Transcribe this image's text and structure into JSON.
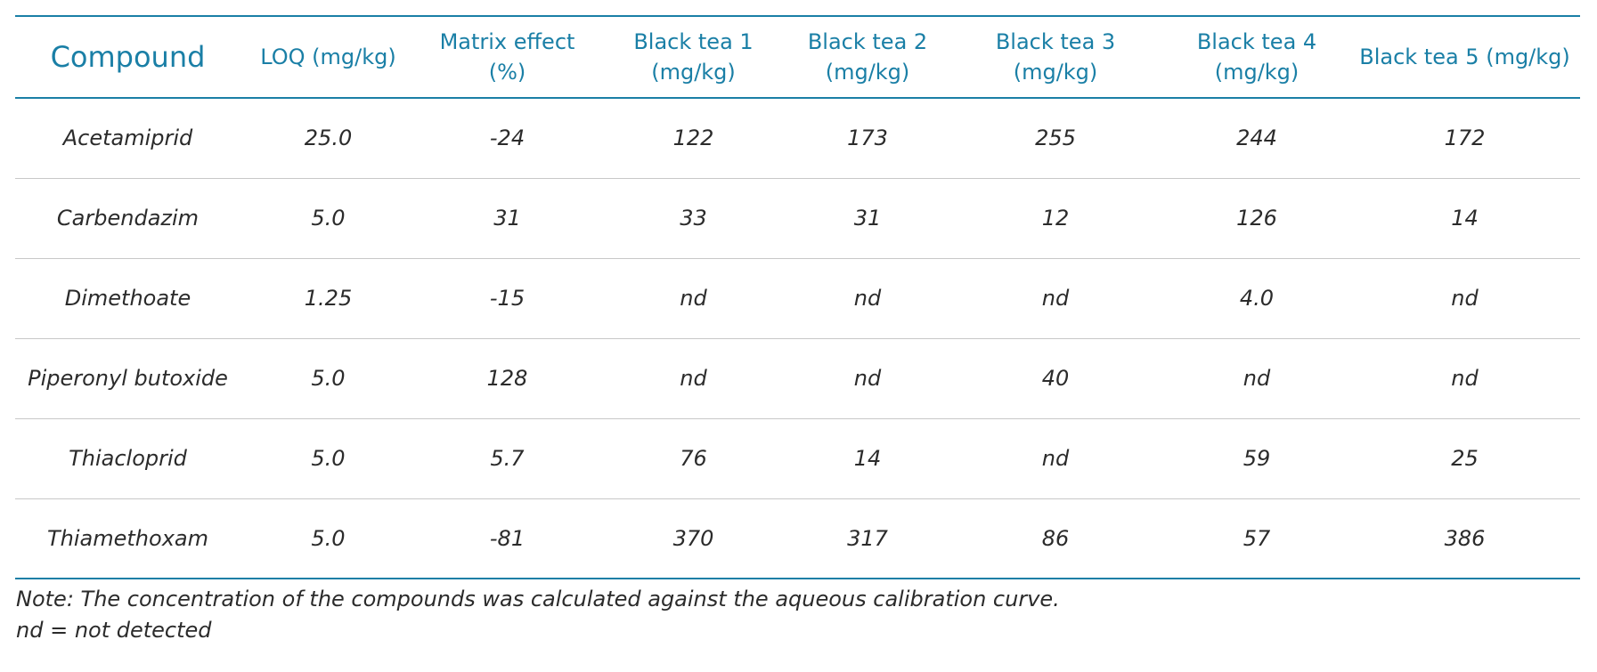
{
  "table": {
    "columns": [
      "Compound",
      "LOQ (mg/kg)",
      "Matrix effect (%)",
      "Black tea 1 (mg/kg)",
      "Black tea 2 (mg/kg)",
      "Black tea 3 (mg/kg)",
      "Black tea 4 (mg/kg)",
      "Black tea 5 (mg/kg)"
    ],
    "rows": [
      [
        "Acetamiprid",
        "25.0",
        "-24",
        "122",
        "173",
        "255",
        "244",
        "172"
      ],
      [
        "Carbendazim",
        "5.0",
        "31",
        "33",
        "31",
        "12",
        "126",
        "14"
      ],
      [
        "Dimethoate",
        "1.25",
        "-15",
        "nd",
        "nd",
        "nd",
        "4.0",
        "nd"
      ],
      [
        "Piperonyl butoxide",
        "5.0",
        "128",
        "nd",
        "nd",
        "40",
        "nd",
        "nd"
      ],
      [
        "Thiacloprid",
        "5.0",
        "5.7",
        "76",
        "14",
        "nd",
        "59",
        "25"
      ],
      [
        "Thiamethoxam",
        "5.0",
        "-81",
        "370",
        "317",
        "86",
        "57",
        "386"
      ]
    ]
  },
  "notes": {
    "line1": "Note: The concentration of the compounds was calculated against the aqueous calibration curve.",
    "line2": "nd = not detected"
  },
  "colors": {
    "accent": "#1a7fa6",
    "text": "#2b2b2b",
    "divider": "#c8c8c8"
  }
}
